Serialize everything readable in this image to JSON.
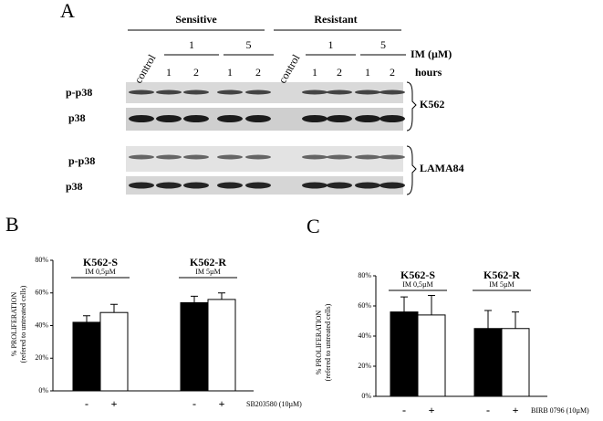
{
  "panels": {
    "a": "A",
    "b": "B",
    "c": "C"
  },
  "blot": {
    "groups": [
      "Sensitive",
      "Resistant"
    ],
    "control_labels": [
      "control",
      "control"
    ],
    "doses": [
      "1",
      "5",
      "1",
      "5"
    ],
    "dose_unit": "IM (µM)",
    "hours": [
      "1",
      "2",
      "1",
      "2",
      "1",
      "2",
      "1",
      "2"
    ],
    "hours_label": "hours",
    "rows": [
      "p-p38",
      "p38",
      "p-p38",
      "p38"
    ],
    "cell_lines": [
      "K562",
      "LAMA84"
    ]
  },
  "chart_data": [
    {
      "type": "bar",
      "categories": [
        "K562-S",
        "K562-R"
      ],
      "category_notes": [
        "IM 0,5µM",
        "IM 5µM"
      ],
      "series": [
        {
          "name": "-",
          "color": "#000000",
          "values": [
            42,
            54
          ],
          "errors": [
            4,
            4
          ]
        },
        {
          "name": "+",
          "color": "#ffffff",
          "values": [
            48,
            56
          ],
          "errors": [
            5,
            4
          ]
        }
      ],
      "treatment_label": "SB203580 (10µM)",
      "ylabel": "% PROLIFERATION",
      "ylabel_note": "(refered to untreated cells)",
      "ylim": [
        0,
        80
      ],
      "yticks": [
        {
          "value": 0,
          "label": "0%"
        },
        {
          "value": 20,
          "label": "20%"
        },
        {
          "value": 40,
          "label": "40%"
        },
        {
          "value": 60,
          "label": "60%"
        },
        {
          "value": 80,
          "label": "80%"
        }
      ]
    },
    {
      "type": "bar",
      "categories": [
        "K562-S",
        "K562-R"
      ],
      "category_notes": [
        "IM 0,5µM",
        "IM 5µM"
      ],
      "series": [
        {
          "name": "-",
          "color": "#000000",
          "values": [
            56,
            45
          ],
          "errors": [
            10,
            12
          ]
        },
        {
          "name": "+",
          "color": "#ffffff",
          "values": [
            54,
            45
          ],
          "errors": [
            13,
            11
          ]
        }
      ],
      "treatment_label": "BIRB 0796 (10µM)",
      "ylabel": "% PROLIFERATION",
      "ylabel_note": "(refered to untreated cells)",
      "ylim": [
        0,
        80
      ],
      "yticks": [
        {
          "value": 0,
          "label": "0%"
        },
        {
          "value": 20,
          "label": "20%"
        },
        {
          "value": 40,
          "label": "40%"
        },
        {
          "value": 60,
          "label": "60%"
        },
        {
          "value": 80,
          "label": "80%"
        }
      ]
    }
  ]
}
